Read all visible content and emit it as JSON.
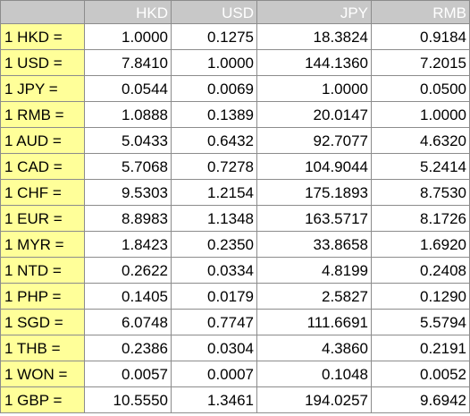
{
  "table": {
    "corner_label": "",
    "headers": [
      "HKD",
      "USD",
      "JPY",
      "RMB"
    ],
    "rows": [
      {
        "label": "1 HKD =",
        "values": [
          "1.0000",
          "0.1275",
          "18.3824",
          "0.9184"
        ]
      },
      {
        "label": "1 USD =",
        "values": [
          "7.8410",
          "1.0000",
          "144.1360",
          "7.2015"
        ]
      },
      {
        "label": "1 JPY =",
        "values": [
          "0.0544",
          "0.0069",
          "1.0000",
          "0.0500"
        ]
      },
      {
        "label": "1 RMB =",
        "values": [
          "1.0888",
          "0.1389",
          "20.0147",
          "1.0000"
        ]
      },
      {
        "label": "1 AUD =",
        "values": [
          "5.0433",
          "0.6432",
          "92.7077",
          "4.6320"
        ]
      },
      {
        "label": "1 CAD =",
        "values": [
          "5.7068",
          "0.7278",
          "104.9044",
          "5.2414"
        ]
      },
      {
        "label": "1 CHF =",
        "values": [
          "9.5303",
          "1.2154",
          "175.1893",
          "8.7530"
        ]
      },
      {
        "label": "1 EUR =",
        "values": [
          "8.8983",
          "1.1348",
          "163.5717",
          "8.1726"
        ]
      },
      {
        "label": "1 MYR =",
        "values": [
          "1.8423",
          "0.2350",
          "33.8658",
          "1.6920"
        ]
      },
      {
        "label": "1 NTD =",
        "values": [
          "0.2622",
          "0.0334",
          "4.8199",
          "0.2408"
        ]
      },
      {
        "label": "1 PHP =",
        "values": [
          "0.1405",
          "0.0179",
          "2.5827",
          "0.1290"
        ]
      },
      {
        "label": "1 SGD =",
        "values": [
          "6.0748",
          "0.7747",
          "111.6691",
          "5.5794"
        ]
      },
      {
        "label": "1 THB =",
        "values": [
          "0.2386",
          "0.0304",
          "4.3860",
          "0.2191"
        ]
      },
      {
        "label": "1 WON =",
        "values": [
          "0.0057",
          "0.0007",
          "0.1048",
          "0.0052"
        ]
      },
      {
        "label": "1 GBP =",
        "values": [
          "10.5550",
          "1.3461",
          "194.0257",
          "9.6942"
        ]
      }
    ]
  },
  "colors": {
    "header_background": "#c8c8c8",
    "header_text": "#ffffff",
    "row_label_background": "#ffff99",
    "cell_background": "#ffffff",
    "grid_line": "#8c8c8c",
    "text": "#000000"
  }
}
